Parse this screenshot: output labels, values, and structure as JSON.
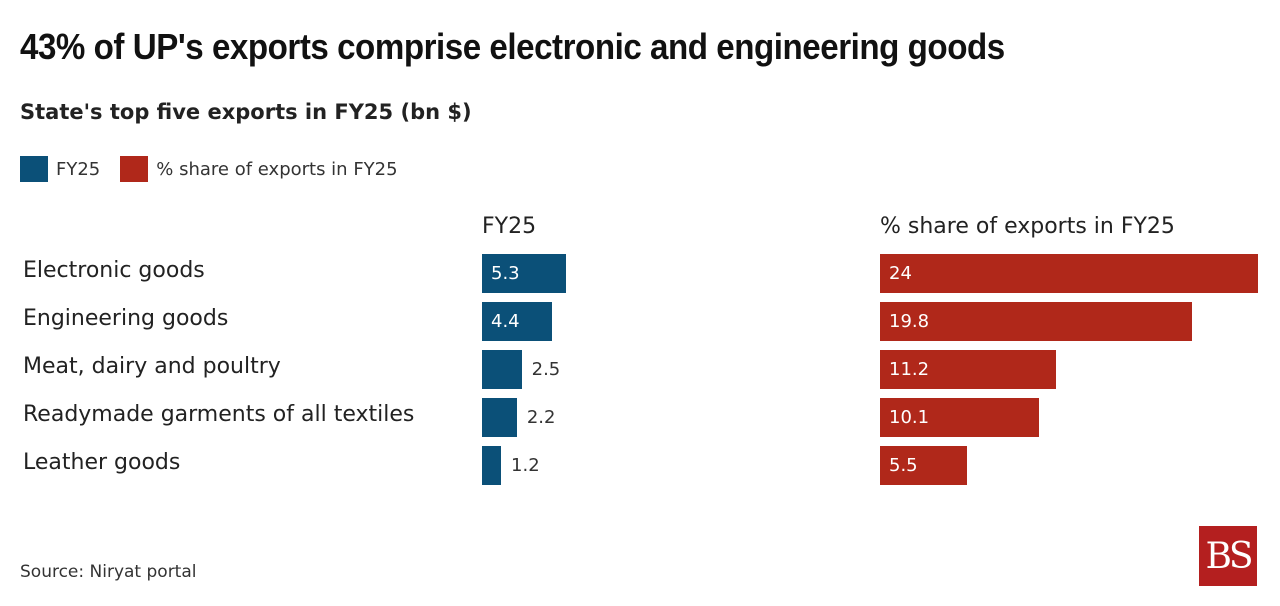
{
  "chart_data": {
    "type": "bar",
    "title": "43% of UP's exports comprise electronic and engineering goods",
    "subtitle": "State's top five exports in FY25 (bn $)",
    "categories": [
      "Electronic goods",
      "Engineering goods",
      "Meat, dairy and poultry",
      "Readymade garments of all textiles",
      "Leather goods"
    ],
    "series": [
      {
        "name": "FY25",
        "color": "#0b5078",
        "values": [
          5.3,
          4.4,
          2.5,
          2.2,
          1.2
        ],
        "labels": [
          "5.3",
          "4.4",
          "2.5",
          "2.2",
          "1.2"
        ]
      },
      {
        "name": "% share of exports in FY25",
        "color": "#b0281a",
        "values": [
          24,
          19.8,
          11.2,
          10.1,
          5.5
        ],
        "labels": [
          "24",
          "19.8",
          "11.2",
          "10.1",
          "5.5"
        ]
      }
    ],
    "legend": "top-left",
    "source": "Source: Niryat portal"
  },
  "logo": "BS"
}
